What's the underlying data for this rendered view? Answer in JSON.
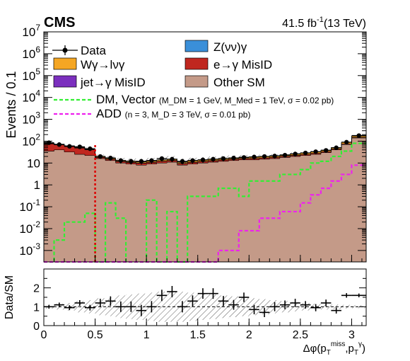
{
  "header": {
    "experiment": "CMS",
    "lumi_text": "41.5 fb",
    "lumi_sup": "-1",
    "energy_text": "(13 TeV)"
  },
  "chart_data": [
    {
      "type": "histogram",
      "panel": "main",
      "ylabel": "Events / 0.1",
      "yscale": "log",
      "ylim": [
        0.0003,
        10000000
      ],
      "xlim": [
        0,
        3.1416
      ],
      "y_tick_labels": [
        {
          "base": "10",
          "exp": "-3",
          "value": 0.001
        },
        {
          "base": "10",
          "exp": "-2",
          "value": 0.01
        },
        {
          "base": "10",
          "exp": "-1",
          "value": 0.1
        },
        {
          "base": "1",
          "exp": "",
          "value": 1
        },
        {
          "base": "10",
          "exp": "",
          "value": 10
        },
        {
          "base": "10",
          "exp": "2",
          "value": 100
        },
        {
          "base": "10",
          "exp": "3",
          "value": 1000
        },
        {
          "base": "10",
          "exp": "4",
          "value": 10000
        },
        {
          "base": "10",
          "exp": "5",
          "value": 100000
        },
        {
          "base": "10",
          "exp": "6",
          "value": 1000000
        },
        {
          "base": "10",
          "exp": "7",
          "value": 10000000
        }
      ],
      "bin_edges": [
        0,
        0.1,
        0.2,
        0.3,
        0.4,
        0.5,
        0.6,
        0.7,
        0.8,
        0.9,
        1.0,
        1.1,
        1.2,
        1.3,
        1.4,
        1.5,
        1.6,
        1.7,
        1.8,
        1.9,
        2.0,
        2.1,
        2.2,
        2.3,
        2.4,
        2.5,
        2.6,
        2.7,
        2.8,
        2.9,
        3.0,
        3.1416
      ],
      "stack": [
        {
          "name": "Other SM",
          "color": "#c49a88",
          "values": [
            35,
            40,
            32,
            25,
            22,
            16,
            13,
            10,
            9,
            8,
            9,
            10,
            11,
            8,
            9,
            10,
            11,
            12,
            13,
            14,
            14,
            15,
            16,
            18,
            20,
            22,
            25,
            30,
            40,
            70,
            140
          ]
        },
        {
          "name": "e→γ MisID",
          "color": "#c0271f",
          "values": [
            40,
            28,
            25,
            23,
            18,
            2,
            1.8,
            1.6,
            1.6,
            1.7,
            1.7,
            2,
            2,
            1.4,
            1.7,
            1.6,
            1.7,
            1.8,
            1.9,
            1.9,
            2,
            2,
            2.1,
            2.2,
            2.3,
            2.5,
            2.7,
            3,
            3.4,
            5,
            9
          ]
        },
        {
          "name": "jet→γ MisID",
          "color": "#7b2fbe",
          "values": [
            2,
            1.8,
            1.6,
            1.4,
            1.2,
            0.4,
            0.3,
            0.3,
            0.3,
            0.3,
            0.3,
            0.3,
            0.3,
            0.2,
            0.3,
            0.3,
            0.3,
            0.3,
            0.3,
            0.3,
            0.3,
            0.3,
            0.3,
            0.3,
            0.3,
            0.3,
            0.3,
            0.3,
            0.3,
            0.5,
            1
          ]
        },
        {
          "name": "Wγ→lνγ",
          "color": "#f5a623",
          "values": [
            3,
            3,
            2.5,
            2.5,
            2,
            1.3,
            1.2,
            1.1,
            1.1,
            1.2,
            1.3,
            1.6,
            1.4,
            1.3,
            1.5,
            1.6,
            1.8,
            1.9,
            2,
            2.2,
            2.5,
            2.8,
            3,
            3.3,
            3.8,
            4.2,
            4.8,
            5.5,
            7,
            12,
            20
          ]
        },
        {
          "name": "Z(νν)γ",
          "color": "#3a8fd9",
          "values": [
            0.6,
            0.6,
            0.5,
            0.5,
            0.4,
            0.2,
            0.2,
            0.2,
            0.2,
            0.2,
            0.2,
            0.2,
            0.2,
            0.2,
            0.2,
            0.2,
            0.2,
            0.3,
            0.3,
            0.3,
            0.3,
            0.3,
            0.3,
            0.3,
            0.4,
            0.4,
            0.5,
            0.5,
            0.6,
            1,
            2
          ]
        }
      ],
      "data_points": [
        85,
        70,
        58,
        55,
        45,
        20,
        17,
        13,
        12,
        12,
        13,
        16,
        15,
        12,
        13,
        14,
        15,
        16,
        17,
        18,
        19,
        20,
        21,
        23,
        26,
        29,
        33,
        38,
        50,
        90,
        180
      ],
      "signals": [
        {
          "name": "DM, Vector",
          "params": "(M_DM = 1 GeV, M_Med = 1 TeV, σ = 0.02 pb)",
          "color": "#33ee33",
          "values": [
            0.0001,
            0.003,
            0.02,
            0.02,
            0.05,
            0.0001,
            0.15,
            0.03,
            0.0001,
            0.0001,
            0.2,
            0.0001,
            0.06,
            0.0001,
            0.3,
            0.3,
            0.3,
            0.7,
            0.7,
            0.3,
            1.5,
            1.5,
            1.5,
            3,
            3,
            5,
            10,
            12,
            20,
            35,
            80
          ]
        },
        {
          "name": "ADD",
          "params": "(n = 3, M_D = 3 TeV, σ = 0.01 pb)",
          "color": "#ee22ee",
          "values": [
            0.0001,
            0.0001,
            0.0001,
            0.0001,
            0.0001,
            0.0001,
            0.0001,
            0.0001,
            0.0001,
            0.0001,
            0.0001,
            0.0001,
            0.0001,
            0.0001,
            0.0001,
            0.0001,
            0.0001,
            0.001,
            0.001,
            0.008,
            0.008,
            0.03,
            0.03,
            0.06,
            0.06,
            0.15,
            0.35,
            0.7,
            1.5,
            3,
            8
          ]
        }
      ],
      "cut_line": {
        "x": 0.5,
        "color": "#dd0000"
      },
      "legend": {
        "data_label": "Data",
        "entries_left": [
          "Wγ→lνγ",
          "jet→γ MisID"
        ],
        "entries_right": [
          "Z(νν)γ",
          "e→γ MisID",
          "Other SM"
        ]
      }
    },
    {
      "type": "ratio",
      "panel": "ratio",
      "ylabel": "Data/SM",
      "ylim": [
        0,
        3
      ],
      "xlim": [
        0,
        3.1416
      ],
      "y_ticks": [
        "0",
        "1",
        "2"
      ],
      "x_ticks": [
        "0",
        "0.5",
        "1",
        "1.5",
        "2",
        "2.5",
        "3"
      ],
      "x_tick_values": [
        0,
        0.5,
        1,
        1.5,
        2,
        2.5,
        3
      ],
      "xlabel": "Δφ(p_T^miss, p_T^γ)",
      "values": [
        1.0,
        1.1,
        0.95,
        1.2,
        0.95,
        1.2,
        1.3,
        1.0,
        1.0,
        0.8,
        1.0,
        1.6,
        1.8,
        1.0,
        1.3,
        1.7,
        1.7,
        1.3,
        1.1,
        1.5,
        0.85,
        0.7,
        1.0,
        1.1,
        1.2,
        1.1,
        0.95,
        1.2,
        0.8,
        1.6,
        1.6
      ],
      "errors": [
        0.1,
        0.12,
        0.13,
        0.15,
        0.15,
        0.22,
        0.25,
        0.28,
        0.28,
        0.3,
        0.3,
        0.3,
        0.3,
        0.3,
        0.3,
        0.28,
        0.28,
        0.27,
        0.26,
        0.25,
        0.25,
        0.25,
        0.24,
        0.23,
        0.22,
        0.2,
        0.19,
        0.18,
        0.16,
        0.12,
        0.1
      ],
      "band": [
        0.1,
        0.15,
        0.2,
        0.3,
        0.35,
        0.45,
        0.5,
        0.6,
        0.65,
        0.7,
        0.75,
        0.8,
        0.8,
        0.8,
        0.75,
        0.7,
        0.65,
        0.6,
        0.55,
        0.5,
        0.45,
        0.4,
        0.35,
        0.3,
        0.25,
        0.2,
        0.15,
        0.15,
        0.12,
        0.1,
        0.08
      ]
    }
  ]
}
